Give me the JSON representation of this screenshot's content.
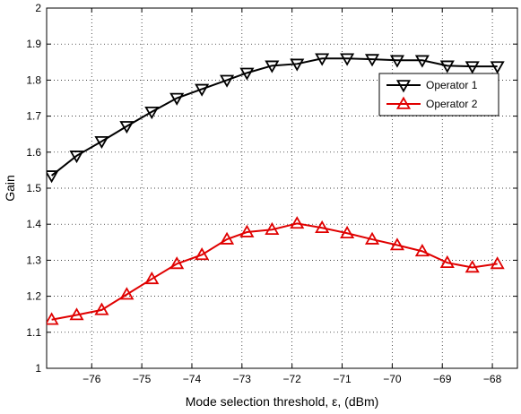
{
  "chart_data": {
    "type": "line",
    "xlabel": "Mode selection threshold, ε, (dBm)",
    "ylabel": "Gain",
    "xlim": [
      -76.9,
      -67.5
    ],
    "ylim": [
      1,
      2
    ],
    "xticks": [
      -76,
      -75,
      -74,
      -73,
      -72,
      -71,
      -70,
      -69,
      -68
    ],
    "yticks": [
      1,
      1.1,
      1.2,
      1.3,
      1.4,
      1.5,
      1.6,
      1.7,
      1.8,
      1.9,
      2
    ],
    "grid": true,
    "legend_position": "top-right",
    "series": [
      {
        "name": "Operator 1",
        "color": "#000000",
        "marker": "triangle-down",
        "x": [
          -76.8,
          -76.3,
          -75.8,
          -75.3,
          -74.8,
          -74.3,
          -73.8,
          -73.3,
          -72.9,
          -72.4,
          -71.9,
          -71.4,
          -70.9,
          -70.4,
          -69.9,
          -69.4,
          -68.9,
          -68.4,
          -67.9
        ],
        "y": [
          1.535,
          1.59,
          1.63,
          1.672,
          1.712,
          1.75,
          1.775,
          1.8,
          1.82,
          1.84,
          1.845,
          1.86,
          1.86,
          1.858,
          1.855,
          1.855,
          1.84,
          1.838,
          1.838
        ]
      },
      {
        "name": "Operator 2",
        "color": "#e00000",
        "marker": "triangle-up",
        "x": [
          -76.8,
          -76.3,
          -75.8,
          -75.3,
          -74.8,
          -74.3,
          -73.8,
          -73.3,
          -72.9,
          -72.4,
          -71.9,
          -71.4,
          -70.9,
          -70.4,
          -69.9,
          -69.4,
          -68.9,
          -68.4,
          -67.9
        ],
        "y": [
          1.135,
          1.148,
          1.162,
          1.205,
          1.248,
          1.29,
          1.315,
          1.358,
          1.378,
          1.385,
          1.402,
          1.39,
          1.375,
          1.358,
          1.342,
          1.325,
          1.293,
          1.28,
          1.29
        ]
      }
    ]
  }
}
